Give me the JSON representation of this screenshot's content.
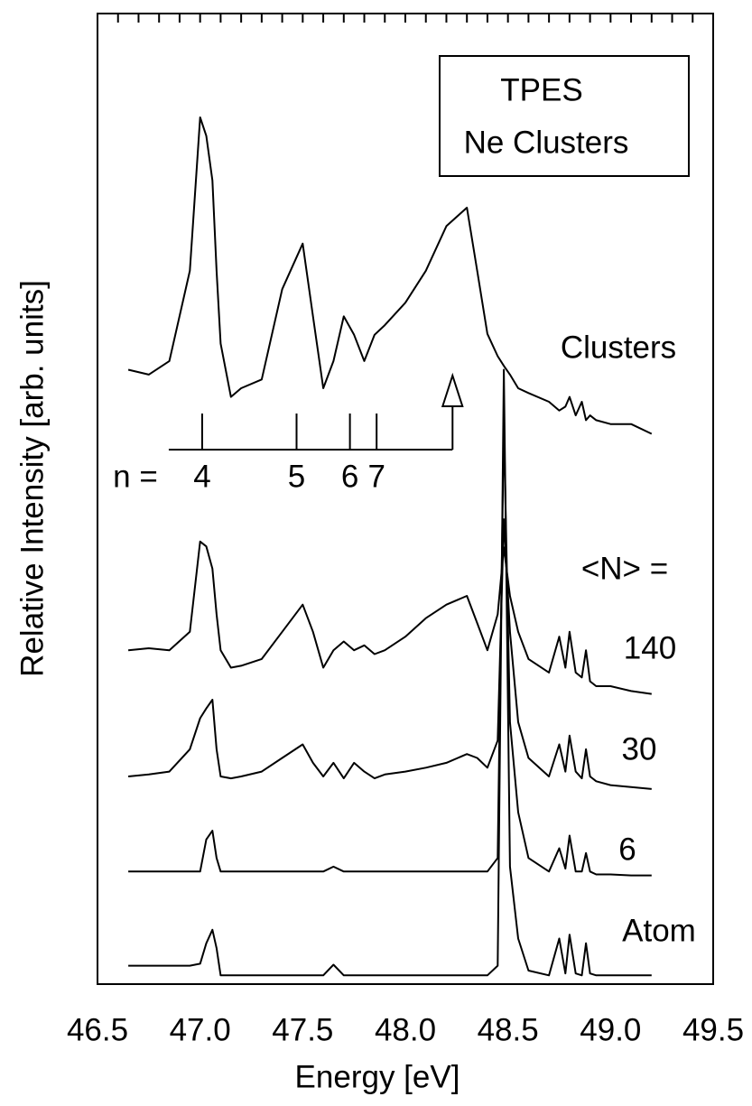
{
  "chart_data": {
    "type": "line",
    "xlabel": "Energy [eV]",
    "ylabel": "Relative Intensity [arb. units]",
    "xlim": [
      46.5,
      49.5
    ],
    "ylim": [
      0,
      100
    ],
    "xticks": [
      46.5,
      {
        "value": 47,
        "label": "47.0"
      },
      47.5,
      {
        "value": 48,
        "label": "48.0"
      },
      48.5,
      {
        "value": 49,
        "label": "49.0"
      },
      49.5
    ],
    "xminorticks": [
      46.6,
      46.7,
      46.8,
      46.9,
      47.0,
      47.1,
      47.2,
      47.3,
      47.4,
      47.5,
      47.6,
      47.7,
      47.8,
      47.9,
      48.0,
      48.1,
      48.2,
      48.3,
      48.4,
      48.5,
      48.6,
      48.7,
      48.8,
      48.9,
      49.0,
      49.1,
      49.2,
      49.3,
      49.4
    ],
    "box_text": [
      "TPES",
      "Ne Clusters"
    ],
    "size_label": "<N> =",
    "n_markers": {
      "label": "n =",
      "positions": [
        47.01,
        47.47,
        47.73,
        47.86
      ],
      "labels": [
        "4",
        "5",
        "6",
        "7"
      ],
      "limit": 48.23
    },
    "x": [
      46.65,
      46.75,
      46.85,
      46.95,
      47.0,
      47.03,
      47.06,
      47.08,
      47.1,
      47.15,
      47.2,
      47.3,
      47.4,
      47.5,
      47.55,
      47.6,
      47.65,
      47.7,
      47.75,
      47.8,
      47.85,
      47.9,
      48.0,
      48.1,
      48.2,
      48.3,
      48.35,
      48.4,
      48.45,
      48.48,
      48.51,
      48.55,
      48.6,
      48.7,
      48.75,
      48.78,
      48.8,
      48.83,
      48.86,
      48.88,
      48.9,
      48.93,
      49.0,
      49.1,
      49.2
    ],
    "series": [
      {
        "name": "Clusters",
        "color": "#000000",
        "values": [
          63.3,
          62.8,
          64.2,
          73.5,
          89.3,
          87.4,
          82.8,
          73.5,
          66,
          60.5,
          61.4,
          62.3,
          71.6,
          76.3,
          68.8,
          61.4,
          64.2,
          68.8,
          66.9,
          64.2,
          66.9,
          67.9,
          70.2,
          73.5,
          78.1,
          80,
          73.5,
          67,
          64.7,
          63.7,
          62.8,
          61.4,
          60.9,
          60,
          59.1,
          59.5,
          60.5,
          58.6,
          60,
          58.1,
          58.6,
          58.1,
          57.7,
          57.7,
          56.7
        ]
      },
      {
        "name": "140",
        "color": "#000000",
        "values": [
          34.4,
          34.6,
          34.4,
          36.3,
          45.6,
          45.1,
          42.8,
          38.1,
          34.4,
          32.6,
          32.8,
          33.5,
          36.3,
          39.1,
          36.3,
          32.6,
          34.4,
          35.3,
          34.4,
          34.9,
          34,
          34.4,
          35.8,
          37.7,
          39.1,
          40,
          37.2,
          34.4,
          38.1,
          45,
          40,
          36.3,
          33.5,
          32.1,
          35.8,
          32.6,
          36.3,
          32.1,
          31.6,
          34.4,
          31.2,
          30.7,
          30.7,
          30.2,
          29.9
        ]
      },
      {
        "name": "30",
        "color": "#000000",
        "values": [
          21.4,
          21.6,
          21.9,
          24.2,
          27.4,
          28.4,
          29.3,
          24.2,
          21.4,
          21.2,
          21.4,
          21.9,
          23.3,
          24.7,
          22.8,
          21.4,
          22.8,
          21.2,
          22.8,
          21.9,
          21.2,
          21.6,
          21.9,
          22.3,
          22.8,
          23.7,
          23.3,
          22.3,
          25.1,
          47.9,
          36.3,
          27,
          23.3,
          21.4,
          24.7,
          21.9,
          25.6,
          21.9,
          21.2,
          24.2,
          21.4,
          20.9,
          20.5,
          20.3,
          20.1
        ]
      },
      {
        "name": "6",
        "color": "#000000",
        "values": [
          11.6,
          11.6,
          11.6,
          11.6,
          11.6,
          14.9,
          15.8,
          13,
          11.6,
          11.6,
          11.6,
          11.6,
          11.6,
          11.6,
          11.6,
          11.6,
          12.1,
          11.6,
          11.6,
          11.6,
          11.6,
          11.6,
          11.6,
          11.6,
          11.6,
          11.6,
          11.6,
          11.6,
          13,
          58,
          27,
          17.7,
          13,
          11.6,
          14,
          11.9,
          15.3,
          11.6,
          11.6,
          13.5,
          11.6,
          11.3,
          11.3,
          11.2,
          11.2
        ]
      },
      {
        "name": "Atom",
        "color": "#000000",
        "values": [
          1.9,
          1.9,
          1.9,
          1.9,
          2.1,
          4.2,
          5.6,
          3.7,
          0.9,
          0.9,
          0.9,
          0.9,
          0.9,
          0.9,
          0.9,
          0.9,
          2,
          0.9,
          0.9,
          0.9,
          0.9,
          0.9,
          0.9,
          0.9,
          0.9,
          0.9,
          0.9,
          0.9,
          1.9,
          63.3,
          12.1,
          4.7,
          1.4,
          0.9,
          4.7,
          1.1,
          5.1,
          1.1,
          0.9,
          4.2,
          1.1,
          0.9,
          0.9,
          0.9,
          0.9
        ]
      }
    ]
  }
}
